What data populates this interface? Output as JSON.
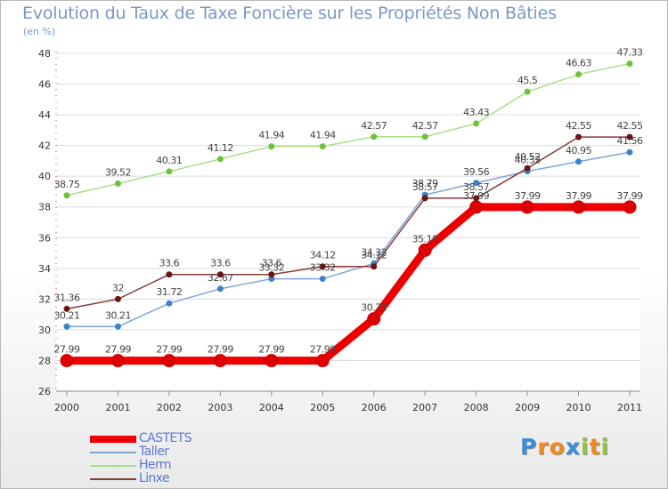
{
  "header": {
    "title": "Evolution du Taux de Taxe Foncière sur les Propriétés Non Bâties",
    "subtitle": "(en %)"
  },
  "logo": {
    "text": "Proxiti",
    "letters": [
      {
        "ch": "P",
        "color": "#3a8fd8"
      },
      {
        "ch": "r",
        "color": "#f08a1c"
      },
      {
        "ch": "o",
        "color": "#f08a1c"
      },
      {
        "ch": "x",
        "color": "#3a8fd8"
      },
      {
        "ch": "i",
        "color": "#8cc63f"
      },
      {
        "ch": "t",
        "color": "#f08a1c"
      },
      {
        "ch": "i",
        "color": "#8cc63f"
      }
    ]
  },
  "chart_data": {
    "type": "line",
    "x": [
      "2000",
      "2001",
      "2002",
      "2003",
      "2004",
      "2005",
      "2006",
      "2007",
      "2008",
      "2009",
      "2010",
      "2011"
    ],
    "ylim": [
      26,
      48
    ],
    "yticks": [
      26,
      28,
      30,
      32,
      34,
      36,
      38,
      40,
      42,
      44,
      46,
      48
    ],
    "grid": true,
    "legend_position": "bottom-left",
    "series": [
      {
        "name": "CASTETS",
        "color": "#ee0000",
        "marker_color": "#dd0000",
        "values": [
          27.99,
          27.99,
          27.99,
          27.99,
          27.99,
          27.99,
          30.71,
          35.18,
          37.99,
          37.99,
          37.99,
          37.99
        ],
        "labels": [
          "27.99",
          "27.99",
          "27.99",
          "27.99",
          "27.99",
          "27.99",
          "30.71",
          "35.18",
          "37.99",
          "37.99",
          "37.99",
          "37.99"
        ]
      },
      {
        "name": "Taller",
        "color": "#7ea6d6",
        "marker_color": "#3d82cc",
        "values": [
          30.21,
          30.21,
          31.72,
          32.67,
          33.32,
          33.32,
          34.32,
          38.79,
          39.56,
          40.32,
          40.95,
          41.56
        ],
        "labels": [
          "30.21",
          "30.21",
          "31.72",
          "32.67",
          "33.32",
          "33.32",
          "34.32",
          "38.79",
          "39.56",
          "40.32",
          "40.95",
          "41.56"
        ]
      },
      {
        "name": "Herm",
        "color": "#a8e08a",
        "marker_color": "#6cc23a",
        "values": [
          38.75,
          39.52,
          40.31,
          41.12,
          41.94,
          41.94,
          42.57,
          42.57,
          43.43,
          45.5,
          46.63,
          47.33
        ],
        "labels": [
          "38.75",
          "39.52",
          "40.31",
          "41.12",
          "41.94",
          "41.94",
          "42.57",
          "42.57",
          "43.43",
          "45.5",
          "46.63",
          "47.33"
        ]
      },
      {
        "name": "Linxe",
        "color": "#8a3a3a",
        "marker_color": "#6b1414",
        "values": [
          31.36,
          32,
          33.6,
          33.6,
          33.6,
          34.12,
          34.12,
          38.57,
          38.57,
          40.52,
          42.55,
          42.55
        ],
        "labels": [
          "31.36",
          "32",
          "33.6",
          "33.6",
          "33.6",
          "34.12",
          "34.12",
          "38.57",
          "38.57",
          "40.52",
          "42.55",
          "42.55"
        ]
      }
    ]
  }
}
